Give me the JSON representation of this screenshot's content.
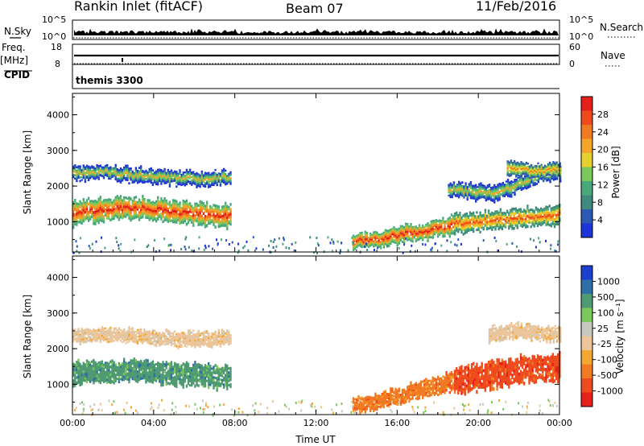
{
  "header": {
    "site": "Rankin Inlet (fitACF)",
    "beam": "Beam 07",
    "date": "11/Feb/2016"
  },
  "status_panels": {
    "nsky_label": "N.Sky",
    "nsearch_label": "N.Search",
    "nsky_ticks": [
      "10^5",
      "10^0"
    ],
    "nsearch_ticks": [
      "10^5",
      "10^0"
    ],
    "freq_label": "Freq.",
    "freq_unit": "[MHz]",
    "freq_ticks": [
      "18",
      "8"
    ],
    "nave_label": "Nave",
    "nave_ticks": [
      "60",
      "0"
    ],
    "cpid_label": "CPID",
    "cpid_value": "themis 3300"
  },
  "colors": {
    "power_scale": [
      "#1d34d8",
      "#2d58b4",
      "#3f8a7c",
      "#49a97c",
      "#7cc85c",
      "#e5d02e",
      "#f3a52a",
      "#f07a22",
      "#ee4a1c",
      "#e4201a"
    ],
    "velocity_scale": [
      "#e8201a",
      "#ee4b1e",
      "#f07b22",
      "#f3a630",
      "#ecc69a",
      "#c8c8c0",
      "#7cc85c",
      "#4f9a72",
      "#2f6fa8",
      "#1d3fcf"
    ]
  },
  "chart_data": [
    {
      "type": "heatmap",
      "panel": "power",
      "x_ticks": [
        "00:00",
        "04:00",
        "08:00",
        "12:00",
        "16:00",
        "20:00",
        "00:00"
      ],
      "xrange_hours": [
        0,
        24
      ],
      "ylabel": "Slant Range [km]",
      "y_ticks": [
        1000,
        2000,
        3000,
        4000
      ],
      "ylim": [
        150,
        4600
      ],
      "colorbar": {
        "label": "Power [dB]",
        "ticks": [
          "4",
          "8",
          "12",
          "16",
          "20",
          "24",
          "28"
        ],
        "range": [
          0,
          31
        ]
      },
      "bands": [
        {
          "t": [
            0,
            7.8
          ],
          "center": [
            1250,
            1350,
            1400,
            1300,
            1200,
            1150
          ],
          "halfwidth": [
            330,
            300,
            280,
            300,
            330,
            300
          ],
          "peak_class": 9
        },
        {
          "t": [
            0,
            7.8
          ],
          "center": [
            2350,
            2400,
            2300,
            2250,
            2200,
            2250
          ],
          "halfwidth": [
            200,
            180,
            200,
            190,
            200,
            180
          ],
          "peak_class": 6
        },
        {
          "t": [
            13.8,
            18.8
          ],
          "center": [
            450,
            500,
            600,
            700,
            800,
            900
          ],
          "halfwidth": [
            200,
            200,
            220,
            230,
            240,
            250
          ],
          "peak_class": 9
        },
        {
          "t": [
            18.8,
            24
          ],
          "center": [
            950,
            1000,
            1050,
            1100,
            1150,
            1200
          ],
          "halfwidth": [
            260,
            260,
            250,
            270,
            280,
            260
          ],
          "peak_class": 8
        },
        {
          "t": [
            18.5,
            24
          ],
          "center": [
            1900,
            1850,
            1800,
            2000,
            2300,
            2400
          ],
          "halfwidth": [
            200,
            220,
            230,
            200,
            200,
            200
          ],
          "peak_class": 6
        },
        {
          "t": [
            21.4,
            24
          ],
          "center": [
            2450,
            2500,
            2450,
            2400,
            2450,
            2500
          ],
          "halfwidth": [
            200,
            200,
            190,
            200,
            190,
            200
          ],
          "peak_class": 7
        }
      ]
    },
    {
      "type": "heatmap",
      "panel": "velocity",
      "x_ticks": [
        "00:00",
        "04:00",
        "08:00",
        "12:00",
        "16:00",
        "20:00",
        "00:00"
      ],
      "xrange_hours": [
        0,
        24
      ],
      "xlabel": "Time UT",
      "ylabel": "Slant Range [km]",
      "y_ticks": [
        1000,
        2000,
        3000,
        4000
      ],
      "ylim": [
        150,
        4600
      ],
      "colorbar": {
        "label": "Velocity [m s⁻¹]",
        "ticks": [
          "1000",
          "500",
          "100",
          "25",
          "-25",
          "-100",
          "-500",
          "-1000"
        ],
        "range": [
          -1000,
          1000
        ]
      },
      "bands": [
        {
          "t": [
            0,
            7.8
          ],
          "center": [
            1300,
            1350,
            1400,
            1300,
            1250,
            1200
          ],
          "halfwidth": [
            320,
            300,
            300,
            300,
            320,
            300
          ],
          "value": 300
        },
        {
          "t": [
            0,
            7.8
          ],
          "center": [
            2350,
            2400,
            2350,
            2300,
            2250,
            2300
          ],
          "halfwidth": [
            200,
            180,
            190,
            190,
            200,
            180
          ],
          "value": 10
        },
        {
          "t": [
            13.8,
            18.8
          ],
          "center": [
            450,
            500,
            650,
            800,
            950,
            1100
          ],
          "halfwidth": [
            200,
            210,
            220,
            230,
            240,
            250
          ],
          "value": -150
        },
        {
          "t": [
            18.8,
            24
          ],
          "center": [
            1100,
            1200,
            1300,
            1400,
            1450,
            1500
          ],
          "halfwidth": [
            350,
            360,
            380,
            380,
            360,
            350
          ],
          "value": -300
        },
        {
          "t": [
            20.5,
            24
          ],
          "center": [
            2400,
            2450,
            2500,
            2450,
            2400,
            2450
          ],
          "halfwidth": [
            200,
            190,
            200,
            190,
            200,
            190
          ],
          "value": 10
        }
      ]
    }
  ]
}
